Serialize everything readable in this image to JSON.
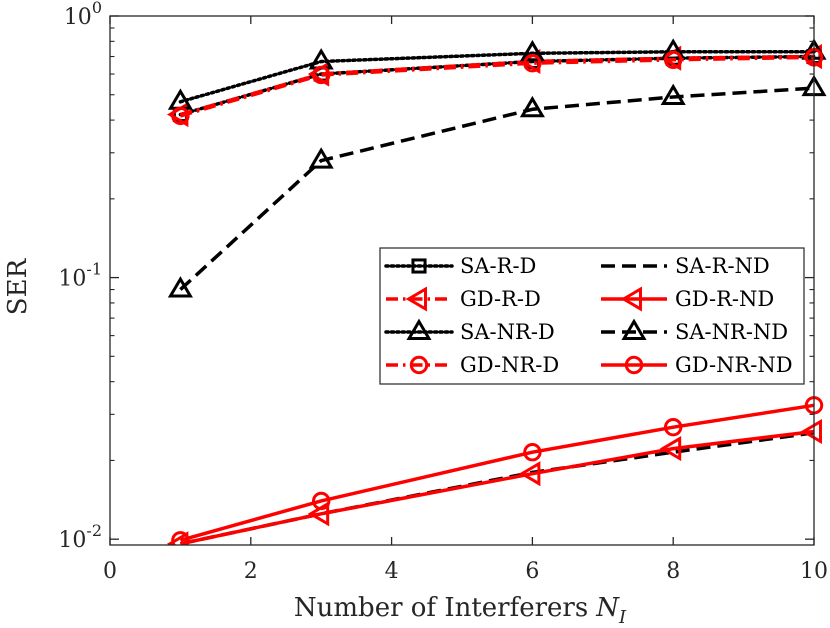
{
  "chart_data": {
    "type": "line",
    "title": "",
    "xlabel": "Number of Interferers",
    "xlabel_symbol": "N",
    "xlabel_subscript": "I",
    "ylabel": "SER",
    "xlim": [
      0,
      10
    ],
    "ylim": [
      0.0095,
      1
    ],
    "yscale": "log",
    "grid": false,
    "legend_position": "center-right",
    "x_ticks": [
      0,
      2,
      4,
      6,
      8,
      10
    ],
    "x_tick_labels": [
      "0",
      "2",
      "4",
      "6",
      "8",
      "10"
    ],
    "y_ticks": [
      {
        "value": 0.01,
        "base": "10",
        "exp": "-2"
      },
      {
        "value": 0.1,
        "base": "10",
        "exp": "-1"
      },
      {
        "value": 1,
        "base": "10",
        "exp": "0"
      }
    ],
    "x": [
      1,
      3,
      6,
      8,
      10
    ],
    "series": [
      {
        "name": "SA-R-D",
        "color": "#000000",
        "line": "dotted",
        "marker": "square",
        "values": [
          0.42,
          0.6,
          0.67,
          0.69,
          0.7
        ]
      },
      {
        "name": "SA-R-ND",
        "color": "#000000",
        "line": "dashed",
        "marker": "none",
        "values": [
          0.0096,
          0.0125,
          0.018,
          0.0215,
          0.0255
        ]
      },
      {
        "name": "GD-R-D",
        "color": "#ff0000",
        "line": "dashdot",
        "marker": "triangle-left",
        "values": [
          0.42,
          0.6,
          0.67,
          0.69,
          0.7
        ]
      },
      {
        "name": "GD-R-ND",
        "color": "#ff0000",
        "line": "solid",
        "marker": "triangle-left",
        "values": [
          0.0096,
          0.0125,
          0.0178,
          0.0222,
          0.0258
        ]
      },
      {
        "name": "SA-NR-D",
        "color": "#000000",
        "line": "dotted",
        "marker": "triangle-up",
        "values": [
          0.47,
          0.67,
          0.72,
          0.73,
          0.73
        ]
      },
      {
        "name": "SA-NR-ND",
        "color": "#000000",
        "line": "dashed",
        "marker": "triangle-up",
        "values": [
          0.09,
          0.28,
          0.44,
          0.49,
          0.53
        ]
      },
      {
        "name": "GD-NR-D",
        "color": "#ff0000",
        "line": "dashdot",
        "marker": "circle",
        "values": [
          0.415,
          0.595,
          0.66,
          0.68,
          0.695
        ]
      },
      {
        "name": "GD-NR-ND",
        "color": "#ff0000",
        "line": "solid",
        "marker": "circle",
        "values": [
          0.0099,
          0.014,
          0.0215,
          0.0268,
          0.0325
        ]
      }
    ]
  }
}
